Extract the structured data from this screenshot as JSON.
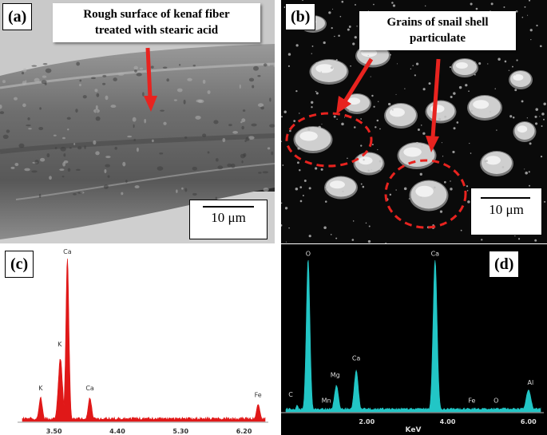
{
  "panels": {
    "a": {
      "label": "(a)",
      "annotation_line1": "Rough surface of kenaf fiber",
      "annotation_line2": "treated with stearic acid",
      "scale": "10 μm"
    },
    "b": {
      "label": "(b)",
      "annotation_line1": "Grains of snail shell",
      "annotation_line2": "particulate",
      "scale": "10 μm"
    },
    "c": {
      "label": "(c)"
    },
    "d": {
      "label": "(d)"
    }
  },
  "colors": {
    "annotation": "#e8231f",
    "eds_c": "#e01818",
    "eds_d": "#22c6c6",
    "eds_d_background": "#000000"
  },
  "chart_data": [
    {
      "type": "line",
      "panel": "c",
      "title": "",
      "xlabel": "",
      "ylabel": "",
      "x_ticks": [
        "3.50",
        "4.40",
        "5.30",
        "6.20"
      ],
      "x_tick_values": [
        3.5,
        4.4,
        5.3,
        6.2
      ],
      "xlim": [
        3.05,
        6.5
      ],
      "ylim": [
        0,
        100
      ],
      "peaks": [
        {
          "label": "K",
          "x": 3.31,
          "height": 14
        },
        {
          "label": "K",
          "x": 3.59,
          "height": 38
        },
        {
          "label": "Ca",
          "x": 3.69,
          "height": 100
        },
        {
          "label": "Ca",
          "x": 4.01,
          "height": 14
        },
        {
          "label": "Fe",
          "x": 6.4,
          "height": 10
        }
      ],
      "peak_labels": [
        {
          "text": "K",
          "x": 3.31,
          "y": 19
        },
        {
          "text": "K",
          "x": 3.58,
          "y": 46
        },
        {
          "text": "Ca",
          "x": 3.69,
          "y": 103
        },
        {
          "text": "Ca",
          "x": 4.01,
          "y": 19
        },
        {
          "text": "Fe",
          "x": 6.4,
          "y": 15
        }
      ]
    },
    {
      "type": "line",
      "panel": "d",
      "title": "",
      "xlabel": "KeV",
      "ylabel": "",
      "x_ticks": [
        "2.00",
        "4.00",
        "6.00"
      ],
      "x_tick_values": [
        2,
        4,
        6
      ],
      "xlim": [
        0,
        6.3
      ],
      "ylim": [
        0,
        100
      ],
      "peaks": [
        {
          "label": "C",
          "x": 0.28,
          "height": 4
        },
        {
          "label": "O",
          "x": 0.55,
          "height": 100
        },
        {
          "label": "Mn",
          "x": 0.64,
          "height": 2
        },
        {
          "label": "Mg",
          "x": 1.25,
          "height": 17
        },
        {
          "label": "Ca",
          "x": 1.74,
          "height": 27
        },
        {
          "label": "Ca",
          "x": 3.69,
          "height": 100
        },
        {
          "label": "Fe",
          "x": 4.9,
          "height": 2
        },
        {
          "label": "O",
          "x": 5.4,
          "height": 2
        },
        {
          "label": "Al",
          "x": 6.0,
          "height": 14
        }
      ],
      "peak_labels": [
        {
          "text": "C",
          "x": 0.12,
          "y": 10
        },
        {
          "text": "O",
          "x": 0.55,
          "y": 103
        },
        {
          "text": "Mn",
          "x": 1.0,
          "y": 6
        },
        {
          "text": "Mg",
          "x": 1.22,
          "y": 23
        },
        {
          "text": "Ca",
          "x": 1.74,
          "y": 34
        },
        {
          "text": "Ca",
          "x": 3.69,
          "y": 103
        },
        {
          "text": "Fe",
          "x": 4.6,
          "y": 6
        },
        {
          "text": "O",
          "x": 5.2,
          "y": 6
        },
        {
          "text": "Al",
          "x": 6.05,
          "y": 18
        }
      ]
    }
  ]
}
